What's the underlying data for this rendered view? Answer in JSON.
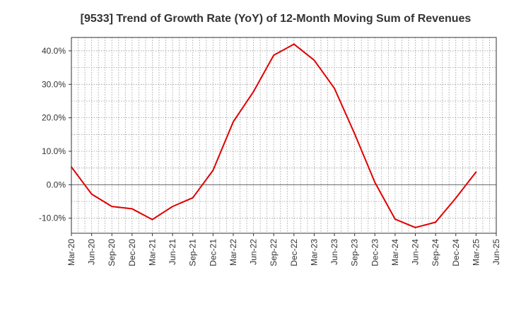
{
  "chart_data": {
    "type": "line",
    "title": "[9533]  Trend of Growth Rate (YoY) of 12-Month Moving Sum of Revenues",
    "xlabel": "",
    "ylabel": "",
    "x_ticks": [
      "Mar-20",
      "Jun-20",
      "Sep-20",
      "Dec-20",
      "Mar-21",
      "Jun-21",
      "Sep-21",
      "Dec-21",
      "Mar-22",
      "Jun-22",
      "Sep-22",
      "Dec-22",
      "Mar-23",
      "Jun-23",
      "Sep-23",
      "Dec-23",
      "Mar-24",
      "Jun-24",
      "Sep-24",
      "Dec-24",
      "Mar-25",
      "Jun-25"
    ],
    "y_ticks": [
      -10,
      0,
      10,
      20,
      30,
      40
    ],
    "y_tick_labels": [
      "-10.0%",
      "0.0%",
      "10.0%",
      "20.0%",
      "30.0%",
      "40.0%"
    ],
    "ylim": [
      -14.5,
      44
    ],
    "grid": true,
    "zero_line": true,
    "series": [
      {
        "color": "#e00000",
        "x": [
          "Mar-20",
          "Jun-20",
          "Sep-20",
          "Dec-20",
          "Mar-21",
          "Jun-21",
          "Sep-21",
          "Dec-21",
          "Mar-22",
          "Jun-22",
          "Sep-22",
          "Dec-22",
          "Mar-23",
          "Jun-23",
          "Sep-23",
          "Dec-23",
          "Mar-24",
          "Jun-24",
          "Sep-24",
          "Dec-24",
          "Mar-25"
        ],
        "values": [
          5.3,
          -2.8,
          -6.5,
          -7.2,
          -10.4,
          -6.5,
          -3.9,
          4.3,
          18.8,
          27.8,
          38.7,
          42.0,
          37.2,
          28.8,
          15.2,
          0.7,
          -10.3,
          -12.8,
          -11.2,
          -4.0,
          3.8
        ]
      }
    ]
  }
}
